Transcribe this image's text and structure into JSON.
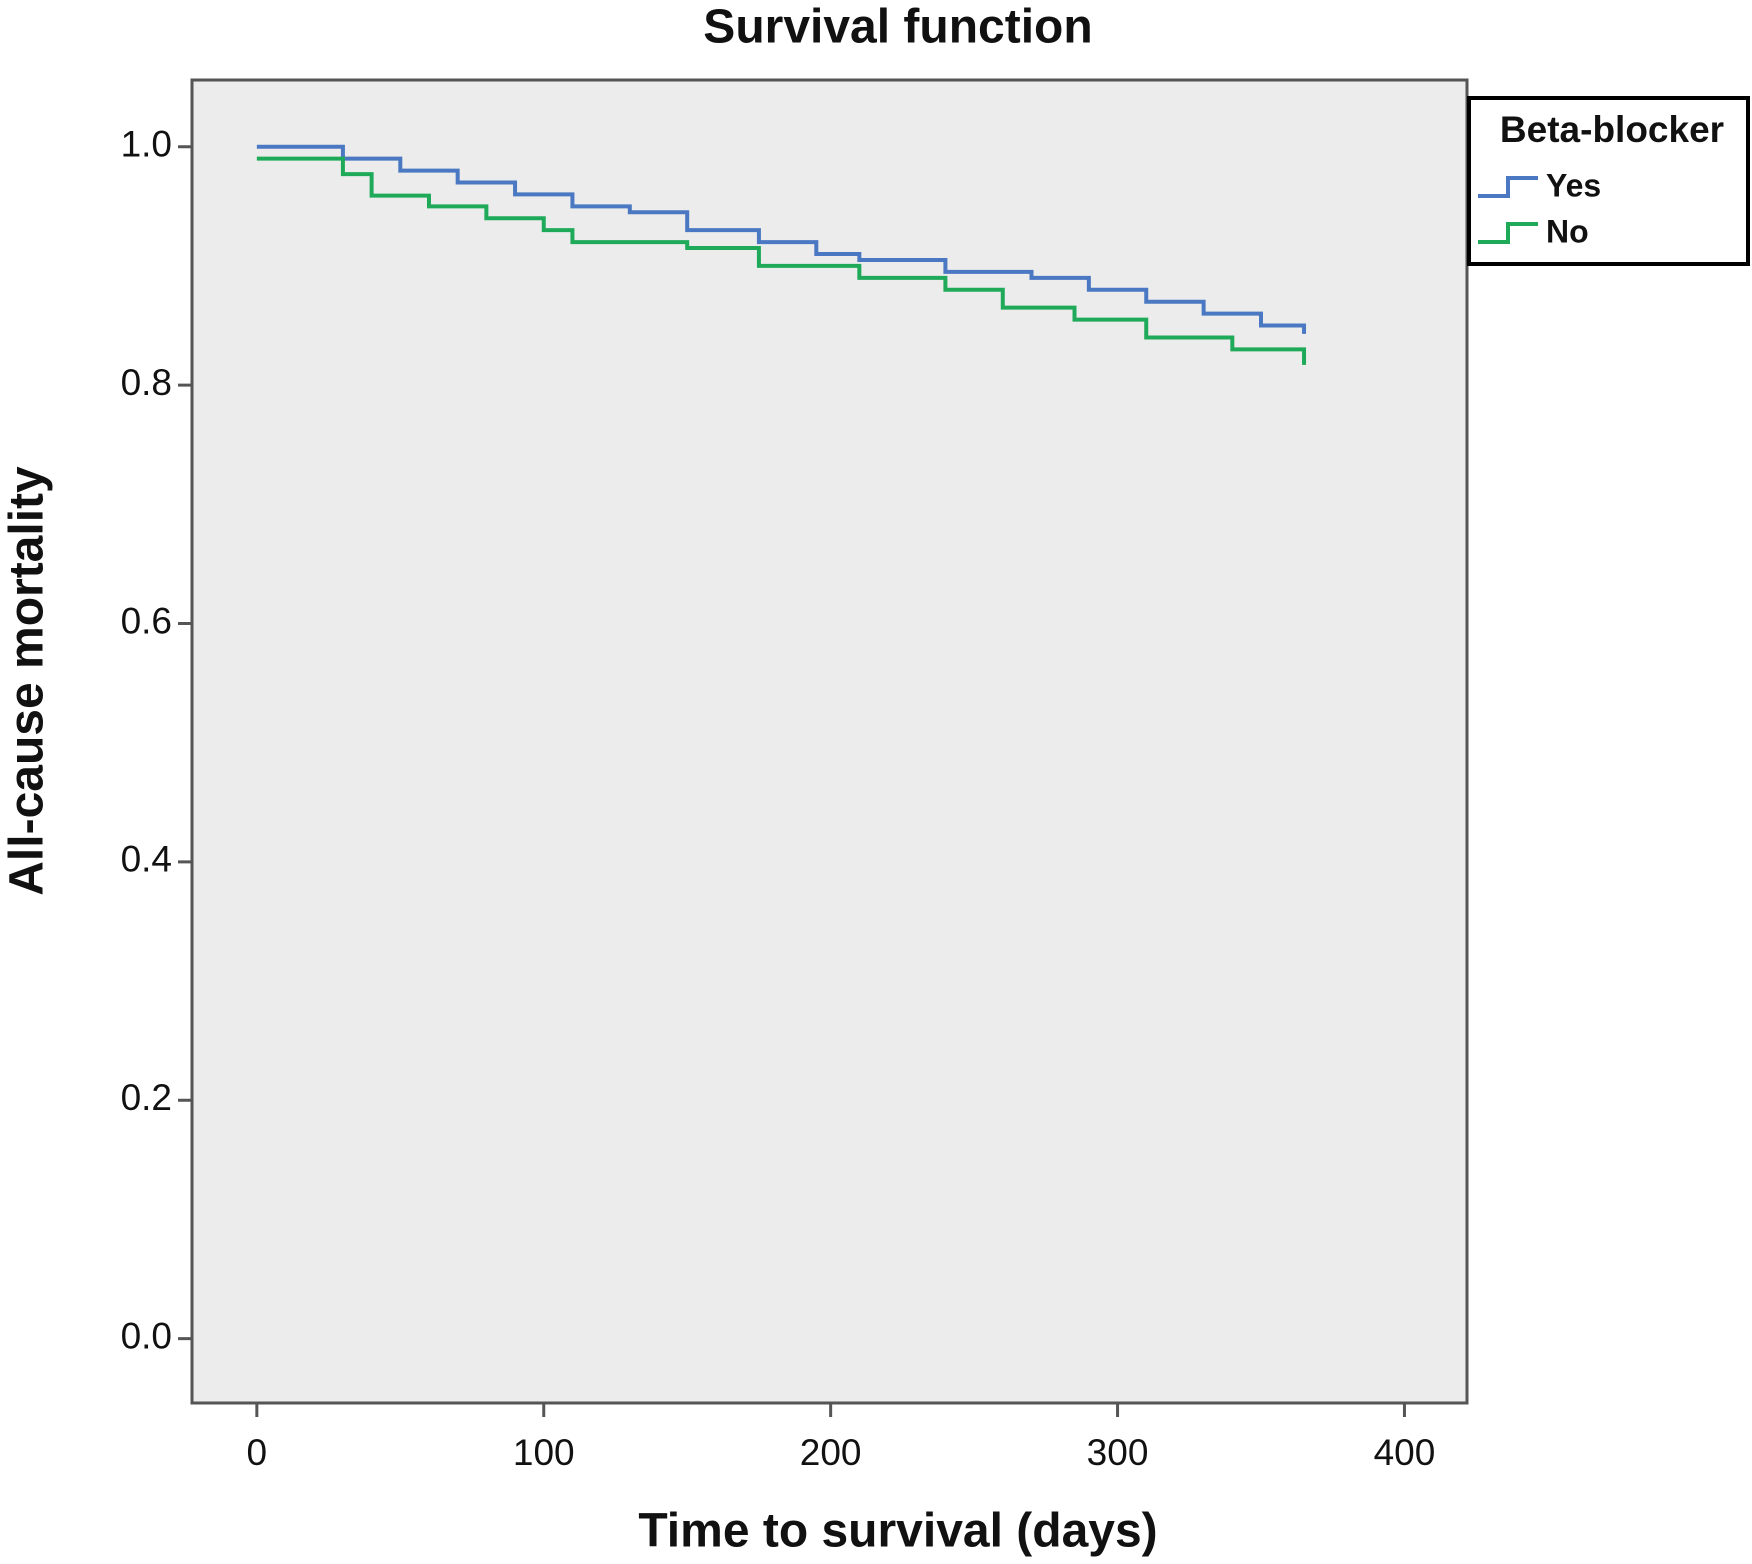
{
  "chart_data": {
    "type": "line",
    "title": "Survival function",
    "x_label": "Time to survival (days)",
    "y_label": "All-cause mortality",
    "legend_title": "Beta-blocker",
    "legend": "right",
    "step": true,
    "xlim": [
      -22.6,
      421.8
    ],
    "ylim": [
      -0.054,
      1.056
    ],
    "xticks": [
      0,
      100,
      200,
      300,
      400
    ],
    "yticks": [
      {
        "value": 0,
        "label": "0.0"
      },
      0.2,
      0.4,
      0.6,
      0.8,
      {
        "value": 1,
        "label": "1.0"
      }
    ],
    "series": [
      {
        "name": "Yes",
        "color": "#4a78c2",
        "x": [
          0,
          30,
          50,
          70,
          90,
          110,
          130,
          150,
          175,
          195,
          210,
          240,
          270,
          290,
          310,
          330,
          350,
          365
        ],
        "values": [
          1.0,
          0.99,
          0.98,
          0.97,
          0.96,
          0.95,
          0.945,
          0.93,
          0.92,
          0.91,
          0.905,
          0.895,
          0.89,
          0.88,
          0.87,
          0.86,
          0.85,
          0.843
        ]
      },
      {
        "name": "No",
        "color": "#1faa5a",
        "x": [
          0,
          30,
          40,
          60,
          80,
          100,
          110,
          150,
          175,
          210,
          240,
          260,
          285,
          310,
          340,
          365
        ],
        "values": [
          0.99,
          0.977,
          0.959,
          0.95,
          0.94,
          0.93,
          0.92,
          0.915,
          0.9,
          0.89,
          0.88,
          0.865,
          0.855,
          0.84,
          0.83,
          0.817
        ]
      }
    ]
  }
}
